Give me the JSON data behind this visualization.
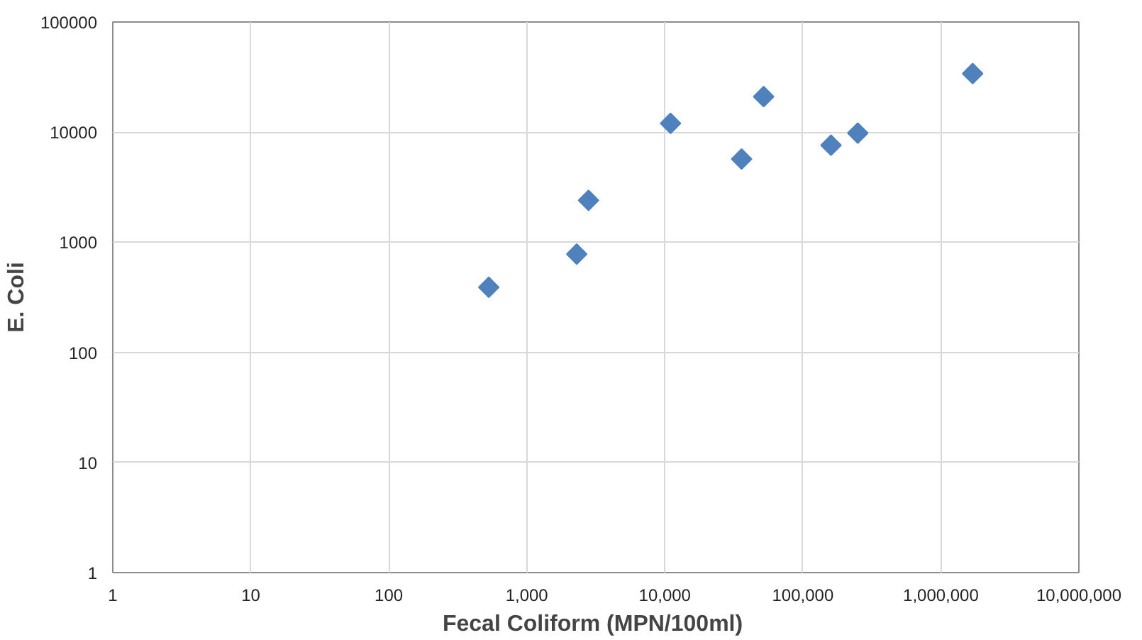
{
  "chart_data": {
    "type": "scatter",
    "xlabel": "Fecal Coliform  (MPN/100ml)",
    "ylabel": "E. Coli",
    "x": [
      530,
      2300,
      2800,
      11000,
      36000,
      52000,
      160000,
      250000,
      1700000
    ],
    "series": [
      {
        "color": "#4f81bd",
        "values": [
          390,
          780,
          2400,
          12000,
          5700,
          21000,
          7600,
          9800,
          34000
        ]
      }
    ],
    "log": "xy",
    "marker": "diamond",
    "grid": true,
    "xlim": [
      1,
      10000000
    ],
    "ylim": [
      1,
      100000
    ],
    "xticks": [
      1,
      10,
      100,
      {
        "value": 1000,
        "label": "1,000"
      },
      {
        "value": 10000,
        "label": "10,000"
      },
      {
        "value": 100000,
        "label": "100,000"
      },
      {
        "value": 1000000,
        "label": "1,000,000"
      },
      {
        "value": 10000000,
        "label": "10,000,000"
      }
    ],
    "yticks": [
      1,
      10,
      100,
      1000,
      10000,
      100000
    ]
  }
}
